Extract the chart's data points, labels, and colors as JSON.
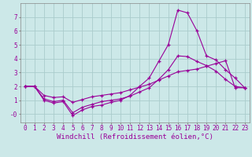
{
  "xlabel": "Windchill (Refroidissement éolien,°C)",
  "x_ticks": [
    0,
    1,
    2,
    3,
    4,
    5,
    6,
    7,
    8,
    9,
    10,
    11,
    12,
    13,
    14,
    15,
    16,
    17,
    18,
    19,
    20,
    21,
    22,
    23
  ],
  "y_ticks": [
    0,
    1,
    2,
    3,
    4,
    5,
    6,
    7
  ],
  "y_tick_labels": [
    "-0",
    "1",
    "2",
    "3",
    "4",
    "5",
    "6",
    "7"
  ],
  "ylim": [
    -0.6,
    8.0
  ],
  "xlim": [
    -0.5,
    23.5
  ],
  "bg_color": "#cce8e8",
  "grid_color": "#aacccc",
  "line_color": "#990099",
  "line1_x": [
    0,
    1,
    2,
    3,
    4,
    5,
    6,
    7,
    8,
    9,
    10,
    11,
    12,
    13,
    14,
    15,
    16,
    17,
    18,
    19,
    20,
    21,
    22,
    23
  ],
  "line1_y": [
    2.0,
    2.0,
    1.0,
    0.8,
    0.9,
    -0.1,
    0.3,
    0.55,
    0.65,
    0.85,
    1.0,
    1.35,
    2.0,
    2.6,
    3.8,
    5.0,
    7.5,
    7.3,
    6.0,
    4.2,
    3.9,
    3.2,
    2.6,
    1.9
  ],
  "line2_x": [
    0,
    1,
    2,
    3,
    4,
    5,
    6,
    7,
    8,
    9,
    10,
    11,
    12,
    13,
    14,
    15,
    16,
    17,
    18,
    19,
    20,
    21,
    22,
    23
  ],
  "line2_y": [
    2.0,
    2.0,
    1.35,
    1.2,
    1.25,
    0.85,
    1.05,
    1.25,
    1.35,
    1.45,
    1.55,
    1.75,
    1.95,
    2.15,
    2.45,
    2.75,
    3.05,
    3.15,
    3.25,
    3.45,
    3.65,
    3.85,
    1.9,
    1.9
  ],
  "line3_x": [
    0,
    1,
    2,
    3,
    4,
    5,
    6,
    7,
    8,
    9,
    10,
    11,
    12,
    13,
    14,
    15,
    16,
    17,
    18,
    19,
    20,
    21,
    22,
    23
  ],
  "line3_y": [
    2.0,
    2.0,
    1.1,
    0.9,
    1.0,
    0.1,
    0.5,
    0.7,
    0.9,
    1.0,
    1.1,
    1.3,
    1.6,
    1.9,
    2.5,
    3.2,
    4.2,
    4.15,
    3.8,
    3.5,
    3.1,
    2.5,
    2.0,
    1.9
  ],
  "marker": "+",
  "markersize": 3,
  "linewidth": 0.8,
  "tick_fontsize": 5.5,
  "label_fontsize": 6.5
}
